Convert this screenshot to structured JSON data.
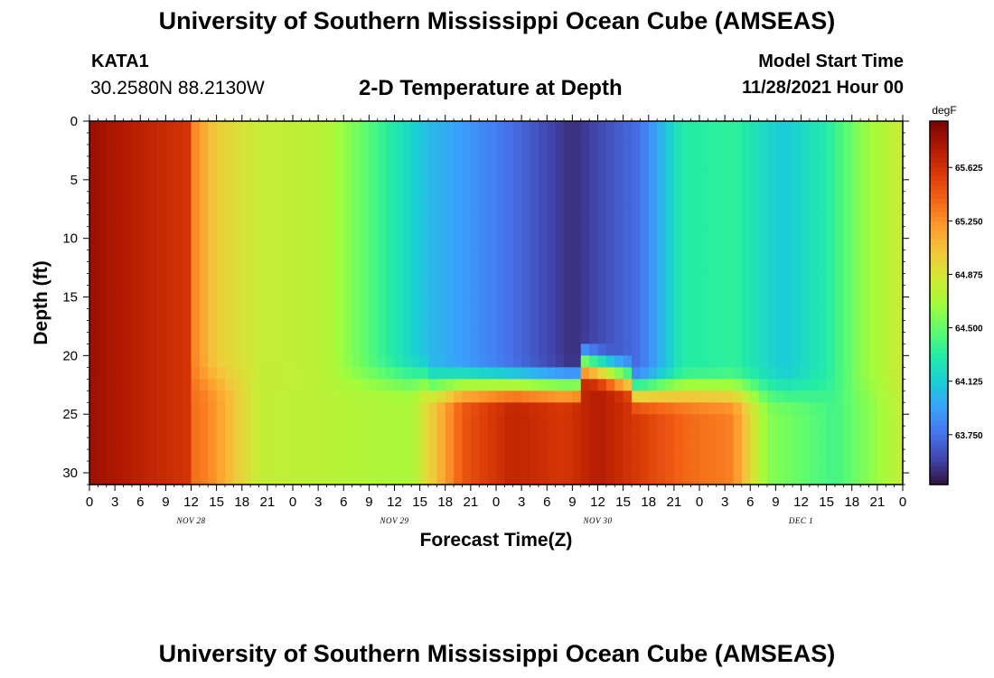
{
  "header": {
    "title": "University of Southern Mississippi Ocean Cube (AMSEAS)",
    "station": "KATA1",
    "coords": "30.2580N  88.2130W",
    "subtitle": "2-D Temperature at Depth",
    "model_start_label": "Model Start Time",
    "model_start_value": "11/28/2021 Hour 00"
  },
  "footer": {
    "title": "University of Southern Mississippi Ocean Cube (AMSEAS)"
  },
  "chart_data": {
    "type": "heatmap",
    "title": "2-D Temperature at Depth",
    "xlabel": "Forecast Time(Z)",
    "ylabel": "Depth (ft)",
    "x_range_hours": [
      0,
      96
    ],
    "y_range_ft": [
      0,
      31
    ],
    "y_inverted": true,
    "x_ticks": [
      "0",
      "3",
      "6",
      "9",
      "12",
      "15",
      "18",
      "21",
      "0",
      "3",
      "6",
      "9",
      "12",
      "15",
      "18",
      "21",
      "0",
      "3",
      "6",
      "9",
      "12",
      "15",
      "18",
      "21",
      "0",
      "3",
      "6",
      "9",
      "12",
      "15",
      "18",
      "21",
      "0"
    ],
    "day_labels": [
      {
        "text": "NOV 28",
        "hour": 12
      },
      {
        "text": "NOV 29",
        "hour": 36
      },
      {
        "text": "NOV 30",
        "hour": 60
      },
      {
        "text": "DEC 1",
        "hour": 84
      }
    ],
    "y_ticks": [
      0,
      5,
      10,
      15,
      20,
      25,
      30
    ],
    "colorbar": {
      "unit": "degF",
      "min": 63.4,
      "max": 65.95,
      "tick_labels": [
        "63.750",
        "64.125",
        "64.500",
        "64.875",
        "65.250",
        "65.625"
      ],
      "colormap": [
        "#30123b",
        "#4145ab",
        "#4675ed",
        "#39a2fc",
        "#1bcfd4",
        "#24eca6",
        "#61fc6c",
        "#a4fc3b",
        "#d1e834",
        "#f3c63a",
        "#fe9b2d",
        "#f36315",
        "#d93806",
        "#b11901",
        "#7a0403"
      ]
    },
    "surface_temperature_degF": [
      {
        "hour": 0,
        "value": 65.85
      },
      {
        "hour": 10,
        "value": 65.55
      },
      {
        "hour": 15,
        "value": 65.0
      },
      {
        "hour": 20,
        "value": 64.82
      },
      {
        "hour": 28,
        "value": 64.75
      },
      {
        "hour": 34,
        "value": 64.4
      },
      {
        "hour": 40,
        "value": 64.05
      },
      {
        "hour": 48,
        "value": 63.8
      },
      {
        "hour": 57,
        "value": 63.5
      },
      {
        "hour": 65,
        "value": 63.75
      },
      {
        "hour": 70,
        "value": 64.3
      },
      {
        "hour": 76,
        "value": 64.35
      },
      {
        "hour": 82,
        "value": 64.1
      },
      {
        "hour": 87,
        "value": 64.3
      },
      {
        "hour": 91,
        "value": 64.6
      },
      {
        "hour": 96,
        "value": 64.85
      }
    ],
    "bottom_temperature_degF": [
      {
        "hour": 0,
        "value": 65.85
      },
      {
        "hour": 14,
        "value": 65.3
      },
      {
        "hour": 20,
        "value": 64.8
      },
      {
        "hour": 30,
        "value": 64.75
      },
      {
        "hour": 38,
        "value": 64.7
      },
      {
        "hour": 44,
        "value": 65.45
      },
      {
        "hour": 50,
        "value": 65.7
      },
      {
        "hour": 56,
        "value": 65.6
      },
      {
        "hour": 60,
        "value": 65.75
      },
      {
        "hour": 70,
        "value": 65.4
      },
      {
        "hour": 76,
        "value": 65.3
      },
      {
        "hour": 80,
        "value": 64.6
      },
      {
        "hour": 88,
        "value": 64.4
      },
      {
        "hour": 96,
        "value": 64.8
      }
    ]
  }
}
